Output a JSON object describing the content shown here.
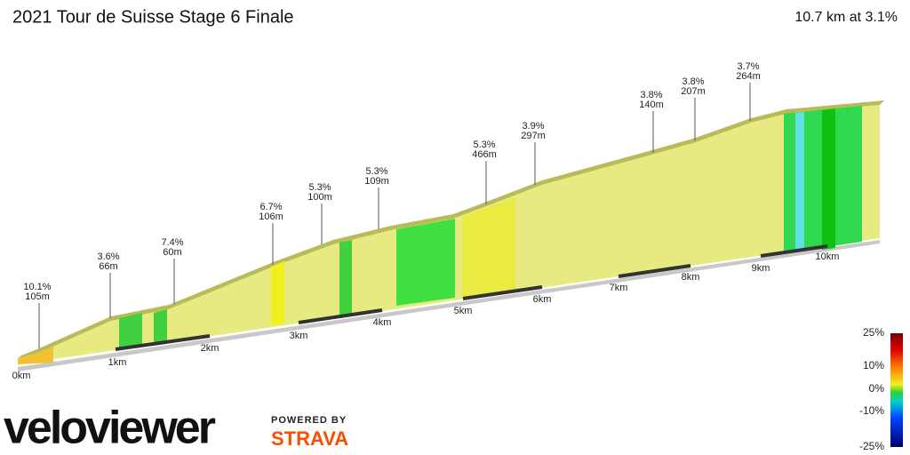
{
  "header": {
    "title": "2021 Tour de Suisse Stage 6 Finale",
    "summary": "10.7 km at 3.1%"
  },
  "annotations": [
    {
      "grade": "10.1%",
      "length": "105m"
    },
    {
      "grade": "3.6%",
      "length": "66m"
    },
    {
      "grade": "7.4%",
      "length": "60m"
    },
    {
      "grade": "6.7%",
      "length": "106m"
    },
    {
      "grade": "5.3%",
      "length": "100m"
    },
    {
      "grade": "5.3%",
      "length": "109m"
    },
    {
      "grade": "5.3%",
      "length": "466m"
    },
    {
      "grade": "3.9%",
      "length": "297m"
    },
    {
      "grade": "3.8%",
      "length": "140m"
    },
    {
      "grade": "3.8%",
      "length": "207m"
    },
    {
      "grade": "3.7%",
      "length": "264m"
    }
  ],
  "distance_labels": [
    "0km",
    "1km",
    "2km",
    "3km",
    "4km",
    "5km",
    "6km",
    "7km",
    "8km",
    "9km",
    "10km"
  ],
  "legend_labels": [
    "25%",
    "10%",
    "0%",
    "-10%",
    "-25%"
  ],
  "logo": {
    "brand": "veloviewer",
    "powered": "POWERED BY",
    "partner": "STRAVA"
  }
}
